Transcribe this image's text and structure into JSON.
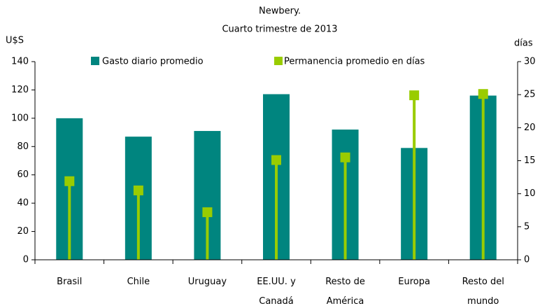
{
  "chart_data": {
    "type": "bar_lollipop",
    "title": "Newbery.",
    "subtitle": "Cuarto trimestre de 2013",
    "ylabel": "U$S",
    "y2label": "días",
    "categories": [
      "Brasil",
      "Chile",
      "Uruguay",
      "EE.UU. y\nCanadá",
      "Resto de\nAmérica",
      "Europa",
      "Resto del\nmundo"
    ],
    "series": [
      {
        "name": "Gasto diario promedio",
        "color": "#00857f",
        "values": [
          100,
          87,
          91,
          117,
          92,
          79,
          116
        ]
      },
      {
        "name": "Permanencia promedio en días",
        "color": "#99cc00",
        "axis": "y2",
        "values": [
          11.9,
          10.5,
          7.2,
          15.1,
          15.5,
          24.9,
          25.1
        ]
      }
    ],
    "ylim": [
      0,
      140
    ],
    "yticks": [
      0,
      20,
      40,
      60,
      80,
      100,
      120,
      140
    ],
    "y2lim": [
      0,
      30
    ],
    "y2ticks": [
      0,
      5,
      10,
      15,
      20,
      25,
      30
    ]
  }
}
